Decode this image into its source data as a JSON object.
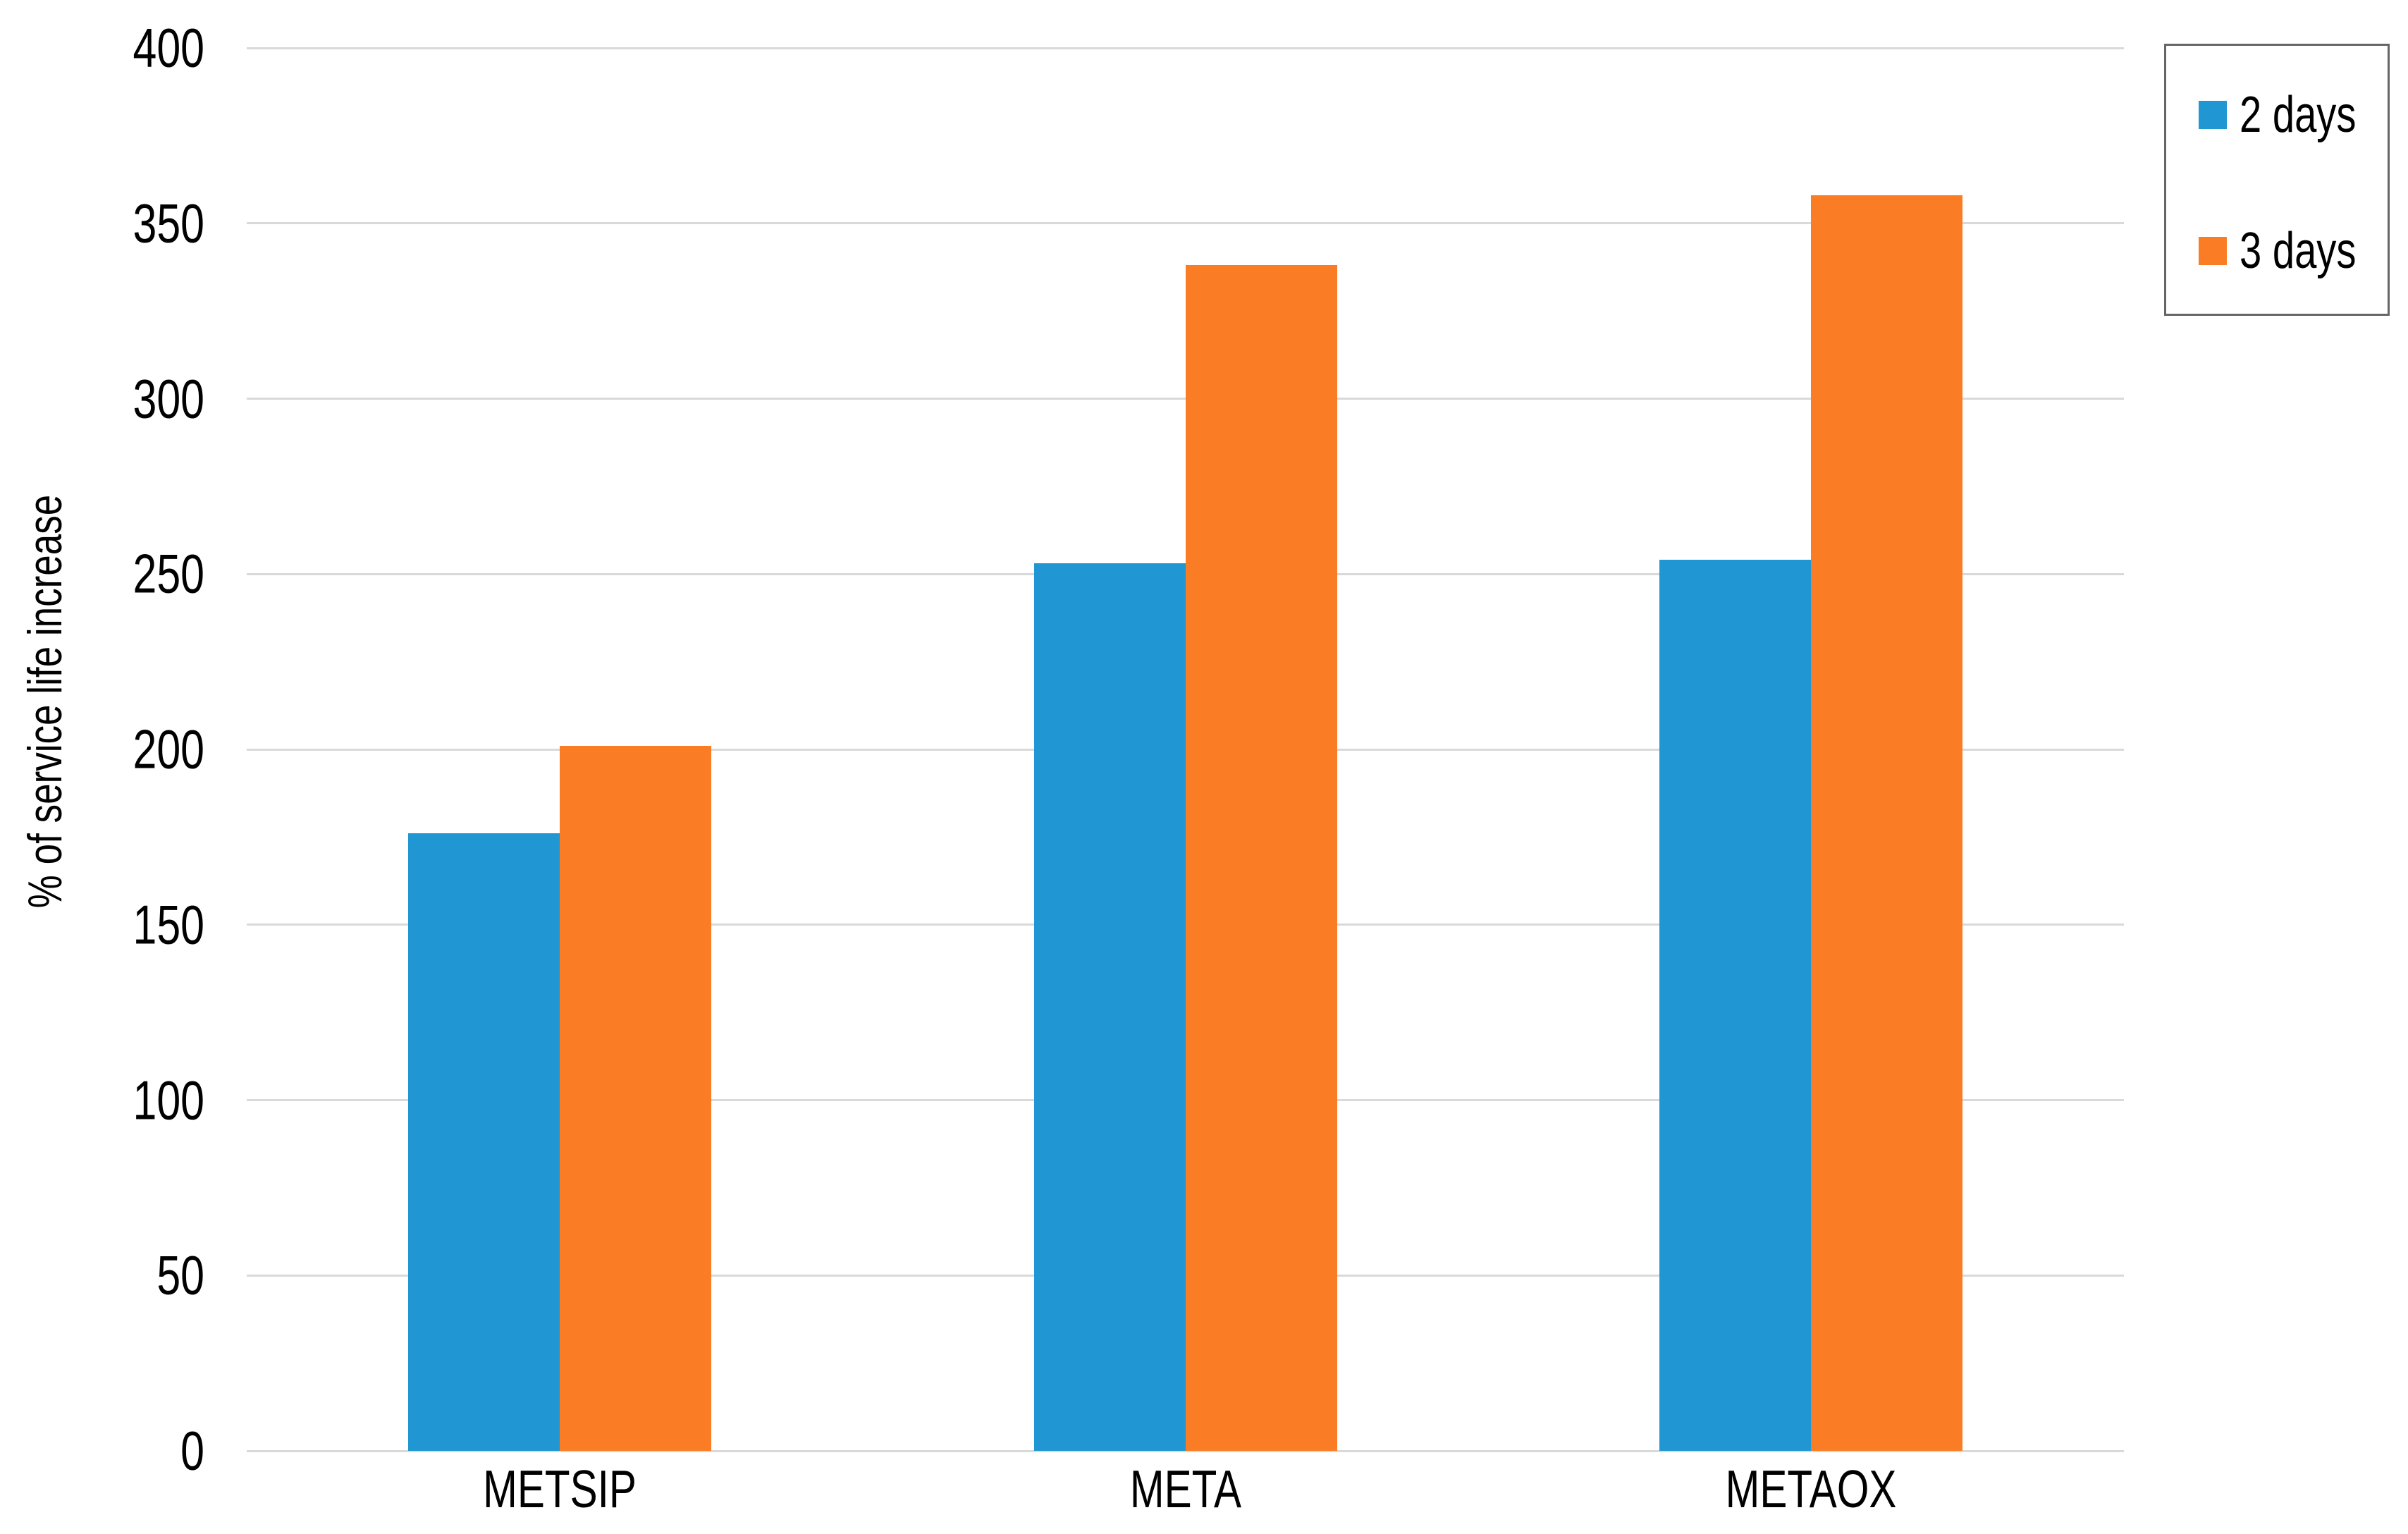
{
  "chart_data": {
    "type": "bar",
    "title": "",
    "categories": [
      "METSIP",
      "META",
      "METAOX"
    ],
    "series": [
      {
        "name": "2 days",
        "color": "#2096D2",
        "values": [
          176,
          253,
          254
        ]
      },
      {
        "name": "3 days",
        "color": "#FA7D26",
        "values": [
          201,
          338,
          358
        ]
      }
    ],
    "xlabel": "",
    "ylabel": "% of service life increase",
    "ylim": [
      0,
      400
    ],
    "ytick_step": 50,
    "y_ticks": [
      0,
      50,
      100,
      150,
      200,
      250,
      300,
      350,
      400
    ],
    "grid": true,
    "gridline_color": "#D9D9D9",
    "background": "#FFFFFF",
    "text_color": "#000000",
    "legend_position": "top-right",
    "legend_border_color": "#666666"
  }
}
